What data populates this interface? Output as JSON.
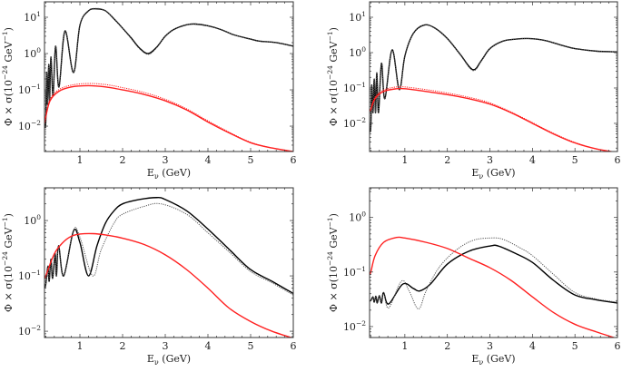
{
  "chart_data": [
    {
      "type": "line",
      "panel": "top-left",
      "xlabel": {
        "main": "E",
        "sub": "ν",
        "unit": " (GeV)"
      },
      "ylabel": {
        "pre": "Φ × σ(10",
        "exp1": "−24",
        "mid": " GeV",
        "exp2": "−1",
        "post": ")"
      },
      "xlim": [
        0.17,
        6
      ],
      "ylim": [
        0.002,
        26.6
      ],
      "yscale": "log",
      "xticks": [
        "1",
        "2",
        "3",
        "4",
        "5",
        "6"
      ],
      "yticks": [
        {
          "value": 10,
          "base": "10",
          "exp": "1"
        },
        {
          "value": 1,
          "base": "10",
          "exp": "0"
        },
        {
          "value": 0.1,
          "base": "10",
          "exp": "−1"
        },
        {
          "value": 0.01,
          "base": "10",
          "exp": "−2"
        }
      ],
      "series": [
        {
          "name": "black-solid",
          "color": "#000000",
          "style": "solid",
          "x": [
            0.17,
            0.2,
            0.22,
            0.24,
            0.27,
            0.29,
            0.32,
            0.37,
            0.43,
            0.51,
            0.65,
            0.85,
            1.0,
            1.2,
            1.4,
            1.6,
            1.8,
            2.0,
            2.2,
            2.4,
            2.6,
            2.8,
            3.0,
            3.2,
            3.5,
            3.7,
            4.0,
            4.3,
            4.6,
            5.0,
            5.2,
            5.6,
            6.0
          ],
          "y": [
            0.01,
            0.013,
            0.3,
            0.04,
            0.5,
            0.05,
            0.8,
            0.07,
            1.6,
            0.12,
            4.2,
            0.3,
            6,
            15,
            17,
            15,
            9,
            5,
            2.7,
            1.4,
            1.0,
            1.5,
            3,
            4.6,
            6.2,
            6.5,
            5.8,
            4.6,
            3.3,
            2.5,
            2.2,
            2.0,
            1.6
          ]
        },
        {
          "name": "black-dotted",
          "color": "#555555",
          "style": "dotted",
          "x": [
            0.17,
            0.2,
            0.22,
            0.24,
            0.27,
            0.29,
            0.32,
            0.37,
            0.43,
            0.51,
            0.65,
            0.85,
            1.0,
            1.2,
            1.4,
            1.6,
            1.8,
            2.0,
            2.2,
            2.4,
            2.6,
            2.8,
            3.0,
            3.2,
            3.5,
            3.7,
            4.0,
            4.3,
            4.6,
            5.0,
            5.2,
            5.6,
            6.0
          ],
          "y": [
            0.01,
            0.013,
            0.3,
            0.04,
            0.5,
            0.05,
            0.8,
            0.07,
            1.6,
            0.12,
            4.2,
            0.3,
            6,
            15,
            17.5,
            15,
            9,
            5,
            2.6,
            1.35,
            0.95,
            1.45,
            3,
            4.6,
            6.2,
            6.6,
            5.8,
            4.6,
            3.3,
            2.5,
            2.2,
            2.0,
            1.6
          ]
        },
        {
          "name": "red-solid",
          "color": "#ff2020",
          "style": "solid",
          "x": [
            0.17,
            0.2,
            0.3,
            0.5,
            0.8,
            1.2,
            1.6,
            2.0,
            2.5,
            3.0,
            3.5,
            4.0,
            4.5,
            5.0,
            5.5,
            6.0
          ],
          "y": [
            0.012,
            0.018,
            0.05,
            0.09,
            0.12,
            0.13,
            0.12,
            0.1,
            0.075,
            0.05,
            0.028,
            0.013,
            0.0065,
            0.0035,
            0.0025,
            0.002
          ]
        },
        {
          "name": "red-dotted",
          "color": "#ff2020",
          "style": "dotted",
          "x": [
            0.17,
            0.2,
            0.3,
            0.5,
            0.8,
            1.2,
            1.6,
            2.0,
            2.5,
            3.0,
            3.5,
            4.0,
            4.5,
            5.0,
            5.5,
            6.0
          ],
          "y": [
            0.012,
            0.019,
            0.055,
            0.1,
            0.135,
            0.15,
            0.14,
            0.115,
            0.085,
            0.055,
            0.03,
            0.014,
            0.0068,
            0.0036,
            0.0025,
            0.002
          ]
        }
      ]
    },
    {
      "type": "line",
      "panel": "top-right",
      "xlabel": {
        "main": "E",
        "sub": "ν",
        "unit": " (GeV)"
      },
      "ylabel": {
        "pre": "Φ × σ(10",
        "exp1": "−24",
        "mid": " GeV",
        "exp2": "−1",
        "post": ")"
      },
      "xlim": [
        0.17,
        6
      ],
      "ylim": [
        0.0016,
        27.3
      ],
      "yscale": "log",
      "xticks": [
        "1",
        "2",
        "3",
        "4",
        "5",
        "6"
      ],
      "yticks": [
        {
          "value": 10,
          "base": "10",
          "exp": "1"
        },
        {
          "value": 1,
          "base": "10",
          "exp": "0"
        },
        {
          "value": 0.1,
          "base": "10",
          "exp": "−1"
        },
        {
          "value": 0.01,
          "base": "10",
          "exp": "−2"
        }
      ],
      "series": [
        {
          "name": "black-solid",
          "color": "#000000",
          "style": "solid",
          "x": [
            0.17,
            0.2,
            0.22,
            0.25,
            0.28,
            0.31,
            0.34,
            0.38,
            0.45,
            0.53,
            0.7,
            0.87,
            1.0,
            1.2,
            1.45,
            1.7,
            2.0,
            2.3,
            2.6,
            2.8,
            3.0,
            3.3,
            3.6,
            3.9,
            4.3,
            4.7,
            5.0,
            5.5,
            6.0
          ],
          "y": [
            0.006,
            0.008,
            0.12,
            0.02,
            0.18,
            0.02,
            0.27,
            0.02,
            0.5,
            0.05,
            1.2,
            0.09,
            0.8,
            3.5,
            6,
            5,
            2.5,
            0.9,
            0.33,
            0.6,
            1.3,
            2.1,
            2.4,
            2.5,
            2.2,
            1.6,
            1.3,
            1.1,
            1.05
          ]
        },
        {
          "name": "black-dotted",
          "color": "#555555",
          "style": "dotted",
          "x": [
            0.17,
            0.2,
            0.22,
            0.25,
            0.28,
            0.31,
            0.34,
            0.38,
            0.45,
            0.53,
            0.7,
            0.87,
            1.0,
            1.2,
            1.45,
            1.7,
            2.0,
            2.3,
            2.6,
            2.8,
            3.0,
            3.3,
            3.6,
            3.9,
            4.3,
            4.7,
            5.0,
            5.5,
            6.0
          ],
          "y": [
            0.006,
            0.008,
            0.12,
            0.02,
            0.18,
            0.02,
            0.27,
            0.02,
            0.5,
            0.05,
            1.2,
            0.09,
            0.8,
            3.5,
            6.1,
            5,
            2.5,
            0.88,
            0.31,
            0.58,
            1.3,
            2.1,
            2.4,
            2.5,
            2.2,
            1.6,
            1.3,
            1.1,
            1.05
          ]
        },
        {
          "name": "red-solid",
          "color": "#ff2020",
          "style": "solid",
          "x": [
            0.17,
            0.2,
            0.3,
            0.5,
            0.8,
            1.0,
            1.5,
            2.0,
            2.5,
            3.0,
            3.5,
            4.0,
            4.5,
            5.0,
            5.5,
            6.0
          ],
          "y": [
            0.022,
            0.025,
            0.05,
            0.08,
            0.095,
            0.095,
            0.08,
            0.065,
            0.05,
            0.035,
            0.02,
            0.01,
            0.005,
            0.0028,
            0.0019,
            0.0015
          ]
        },
        {
          "name": "red-dotted",
          "color": "#ff2020",
          "style": "dotted",
          "x": [
            0.17,
            0.2,
            0.3,
            0.5,
            0.8,
            1.0,
            1.5,
            2.0,
            2.5,
            3.0,
            3.5,
            4.0,
            4.5,
            5.0,
            5.5,
            6.0
          ],
          "y": [
            0.022,
            0.026,
            0.055,
            0.088,
            0.107,
            0.107,
            0.09,
            0.072,
            0.055,
            0.038,
            0.021,
            0.0105,
            0.0052,
            0.0029,
            0.0019,
            0.0015
          ]
        }
      ]
    },
    {
      "type": "line",
      "panel": "bottom-left",
      "xlabel": {
        "main": "E",
        "sub": "ν",
        "unit": " (GeV)"
      },
      "ylabel": {
        "pre": "Φ × σ(10",
        "exp1": "−24",
        "mid": " GeV",
        "exp2": "−1",
        "post": ")"
      },
      "xlim": [
        0.17,
        6
      ],
      "ylim": [
        0.0077,
        3.9
      ],
      "yscale": "log",
      "xticks": [
        "1",
        "2",
        "3",
        "4",
        "5",
        "6"
      ],
      "yticks": [
        {
          "value": 1,
          "base": "10",
          "exp": "0"
        },
        {
          "value": 0.1,
          "base": "10",
          "exp": "−1"
        },
        {
          "value": 0.01,
          "base": "10",
          "exp": "−2"
        }
      ],
      "series": [
        {
          "name": "black-solid",
          "color": "#000000",
          "style": "solid",
          "x": [
            0.17,
            0.2,
            0.25,
            0.28,
            0.32,
            0.36,
            0.42,
            0.45,
            0.5,
            0.62,
            0.85,
            1.0,
            1.2,
            1.4,
            1.6,
            1.8,
            2.0,
            2.4,
            2.8,
            3.0,
            3.5,
            4.0,
            4.5,
            5.0,
            5.5,
            6.0
          ],
          "y": [
            0.06,
            0.07,
            0.15,
            0.08,
            0.2,
            0.09,
            0.25,
            0.1,
            0.35,
            0.1,
            0.65,
            0.4,
            0.1,
            0.35,
            0.9,
            1.5,
            2.0,
            2.4,
            2.6,
            2.4,
            1.5,
            0.7,
            0.3,
            0.13,
            0.08,
            0.048
          ]
        },
        {
          "name": "black-dotted",
          "color": "#555555",
          "style": "dotted",
          "x": [
            0.17,
            0.2,
            0.25,
            0.28,
            0.32,
            0.36,
            0.42,
            0.45,
            0.5,
            0.62,
            0.85,
            1.0,
            1.3,
            1.5,
            1.8,
            2.0,
            2.5,
            2.9,
            3.5,
            4.0,
            4.5,
            5.0,
            5.5,
            6.0
          ],
          "y": [
            0.06,
            0.07,
            0.15,
            0.08,
            0.2,
            0.09,
            0.25,
            0.1,
            0.35,
            0.1,
            0.67,
            0.5,
            0.1,
            0.3,
            0.9,
            1.3,
            1.8,
            2.0,
            1.3,
            0.6,
            0.27,
            0.12,
            0.075,
            0.045
          ]
        },
        {
          "name": "red-solid",
          "color": "#ff2020",
          "style": "solid",
          "x": [
            0.17,
            0.2,
            0.4,
            0.6,
            0.8,
            1.0,
            1.3,
            1.6,
            2.0,
            2.5,
            3.0,
            3.5,
            4.0,
            4.5,
            5.0,
            5.5,
            6.0
          ],
          "y": [
            0.09,
            0.1,
            0.25,
            0.4,
            0.52,
            0.57,
            0.58,
            0.55,
            0.48,
            0.37,
            0.24,
            0.13,
            0.06,
            0.026,
            0.015,
            0.01,
            0.0075
          ]
        }
      ]
    },
    {
      "type": "line",
      "panel": "bottom-right",
      "xlabel": {
        "main": "E",
        "sub": "ν",
        "unit": " (GeV)"
      },
      "ylabel": {
        "pre": "Φ × σ(10",
        "exp1": "−24",
        "mid": " GeV",
        "exp2": "−1",
        "post": ")"
      },
      "xlim": [
        0.17,
        6
      ],
      "ylim": [
        0.0063,
        3.5
      ],
      "yscale": "log",
      "xticks": [
        "1",
        "2",
        "3",
        "4",
        "5",
        "6"
      ],
      "yticks": [
        {
          "value": 1,
          "base": "10",
          "exp": "0"
        },
        {
          "value": 0.1,
          "base": "10",
          "exp": "−1"
        },
        {
          "value": 0.01,
          "base": "10",
          "exp": "−2"
        }
      ],
      "series": [
        {
          "name": "black-solid",
          "color": "#000000",
          "style": "solid",
          "x": [
            0.17,
            0.2,
            0.25,
            0.28,
            0.32,
            0.35,
            0.4,
            0.45,
            0.5,
            0.62,
            0.95,
            1.2,
            1.35,
            1.6,
            2.0,
            2.5,
            3.0,
            3.2,
            3.6,
            4.0,
            4.5,
            5.0,
            5.5,
            6.0
          ],
          "y": [
            0.03,
            0.03,
            0.035,
            0.028,
            0.036,
            0.027,
            0.037,
            0.027,
            0.042,
            0.026,
            0.06,
            0.05,
            0.045,
            0.06,
            0.14,
            0.24,
            0.3,
            0.3,
            0.22,
            0.15,
            0.07,
            0.038,
            0.031,
            0.027
          ]
        },
        {
          "name": "black-dotted",
          "color": "#555555",
          "style": "dotted",
          "x": [
            0.17,
            0.2,
            0.25,
            0.28,
            0.32,
            0.35,
            0.4,
            0.45,
            0.5,
            0.62,
            0.92,
            1.1,
            1.32,
            1.5,
            1.8,
            2.2,
            2.6,
            3.0,
            3.3,
            3.7,
            4.0,
            4.5,
            5.0,
            5.5,
            6.0
          ],
          "y": [
            0.03,
            0.03,
            0.035,
            0.028,
            0.036,
            0.027,
            0.037,
            0.027,
            0.042,
            0.022,
            0.068,
            0.045,
            0.021,
            0.045,
            0.12,
            0.25,
            0.38,
            0.42,
            0.4,
            0.28,
            0.2,
            0.09,
            0.042,
            0.032,
            0.028
          ]
        },
        {
          "name": "red-solid",
          "color": "#ff2020",
          "style": "solid",
          "x": [
            0.17,
            0.2,
            0.3,
            0.5,
            0.8,
            1.0,
            1.5,
            2.0,
            2.5,
            3.0,
            3.5,
            4.0,
            4.5,
            5.0,
            5.5,
            6.0
          ],
          "y": [
            0.09,
            0.1,
            0.2,
            0.35,
            0.43,
            0.42,
            0.35,
            0.27,
            0.18,
            0.12,
            0.07,
            0.035,
            0.018,
            0.011,
            0.008,
            0.006
          ]
        }
      ]
    }
  ]
}
